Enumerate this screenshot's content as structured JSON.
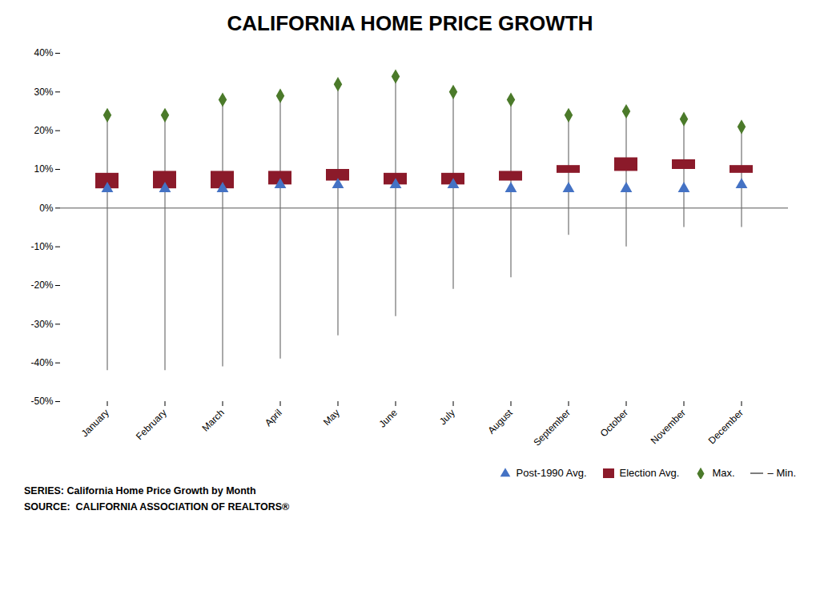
{
  "chart_data": {
    "type": "range",
    "title": "CALIFORNIA HOME PRICE GROWTH",
    "categories": [
      "January",
      "February",
      "March",
      "April",
      "May",
      "June",
      "July",
      "August",
      "September",
      "October",
      "November",
      "December"
    ],
    "series": [
      {
        "name": "Post-1990 Avg.",
        "type": "scatter",
        "marker": "triangle",
        "color": "#4472C4",
        "values": [
          5,
          5,
          5,
          6,
          6,
          6,
          6,
          5,
          5,
          5,
          5,
          6
        ]
      },
      {
        "name": "Election Avg.",
        "type": "bar",
        "color": "#8B1A2A",
        "low": [
          5,
          5,
          5,
          6,
          7,
          6,
          6,
          7,
          9,
          9.5,
          10,
          9
        ],
        "high": [
          9,
          9.5,
          9.5,
          9.5,
          10,
          9,
          9,
          9.5,
          11,
          13,
          12.5,
          11
        ]
      },
      {
        "name": "Max.",
        "type": "scatter",
        "marker": "diamond",
        "color": "#4B7A2A",
        "values": [
          24,
          24,
          28,
          29,
          32,
          34,
          30,
          28,
          24,
          25,
          23,
          21
        ]
      },
      {
        "name": "– Min.",
        "type": "rule",
        "color": "#707070",
        "values": [
          -42,
          -42,
          -41,
          -39,
          -33,
          -28,
          -21,
          -18,
          -7,
          -10,
          -5,
          -5
        ]
      }
    ],
    "ylim": [
      -50,
      40
    ],
    "yticks": [
      {
        "value": -50,
        "label": "-50%"
      },
      {
        "value": -40,
        "label": "-40%"
      },
      {
        "value": -30,
        "label": "-30%"
      },
      {
        "value": -20,
        "label": "-20%"
      },
      {
        "value": -10,
        "label": "-10%"
      },
      {
        "value": 0,
        "label": "0%"
      },
      {
        "value": 10,
        "label": "10%"
      },
      {
        "value": 20,
        "label": "20%"
      },
      {
        "value": 30,
        "label": "30%"
      },
      {
        "value": 40,
        "label": "40%"
      }
    ],
    "grid": false,
    "legend": "lower right",
    "annotations": [
      "SERIES: California Home Price Growth by Month",
      "SOURCE:  CALIFORNIA ASSOCIATION OF REALTORS®"
    ]
  }
}
